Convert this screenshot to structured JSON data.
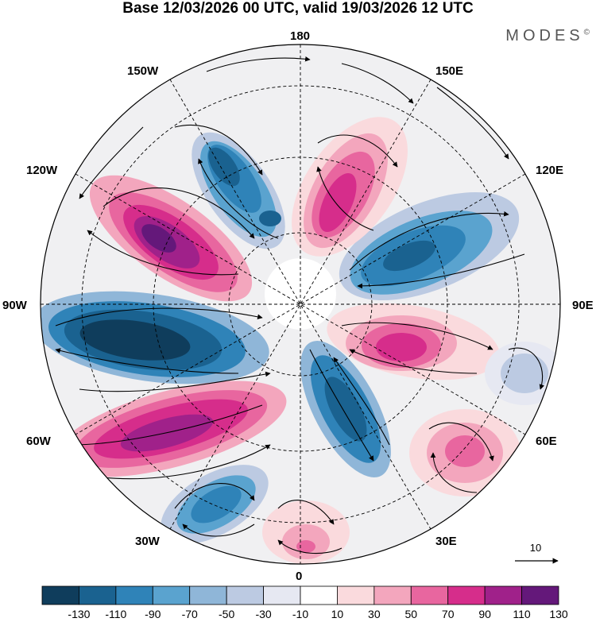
{
  "title": "Base 12/03/2026 00 UTC, valid 19/03/2026 12 UTC",
  "brand": "MODES",
  "brand_mark": "©",
  "meridian_labels": {
    "n180": "180",
    "w150": "150W",
    "e150": "150E",
    "w120": "120W",
    "e120": "120E",
    "w90": "90W",
    "e90": "90E",
    "w60": "60W",
    "e60": "60E",
    "w30": "30W",
    "e30": "30E",
    "s0": "0"
  },
  "reference_vector": "10",
  "colorbar": {
    "ticks": [
      "-130",
      "-110",
      "-90",
      "-70",
      "-50",
      "-30",
      "-10",
      "10",
      "30",
      "50",
      "70",
      "90",
      "110",
      "130"
    ],
    "colors": [
      "#0f3d5c",
      "#1a6290",
      "#2f83b8",
      "#5aa3cf",
      "#8fb6d8",
      "#bccae2",
      "#e6e8f2",
      "#ffffff",
      "#fadadd",
      "#f3a6bd",
      "#e8669f",
      "#d62d8b",
      "#a0218a",
      "#64187a"
    ]
  }
}
